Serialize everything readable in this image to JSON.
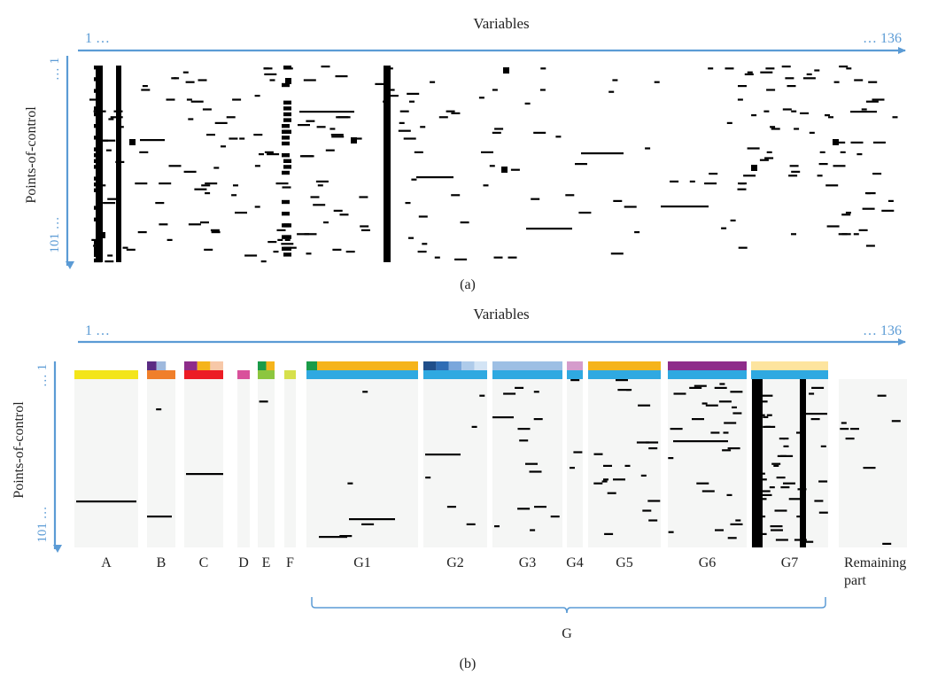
{
  "panel_a": {
    "top_label": "Variables",
    "x_start": "1 …",
    "x_end": "… 136",
    "y_label": "Points-of-control",
    "y_start": "… 1",
    "y_end": "101 …",
    "caption": "(a)"
  },
  "panel_b": {
    "top_label": "Variables",
    "x_start": "1 …",
    "x_end": "… 136",
    "y_label": "Points-of-control",
    "y_start": "… 1",
    "y_end": "101 …",
    "caption": "(b)",
    "group_brace_label": "G",
    "groups": [
      {
        "label": "A",
        "colors": [
          [
            "#f3e51a"
          ]
        ]
      },
      {
        "label": "B",
        "colors": [
          [
            "#5b2c83",
            "#9fb9dd",
            "#ffffff"
          ],
          [
            "#f07f2a"
          ]
        ]
      },
      {
        "label": "C",
        "colors": [
          [
            "#8e2c8a",
            "#f5b41b",
            "#f7c8a8"
          ],
          [
            "#ec1c24"
          ]
        ]
      },
      {
        "label": "D",
        "colors": [
          [
            "#d9519b"
          ]
        ]
      },
      {
        "label": "E",
        "colors": [
          [
            "#1a9b48",
            "#f5b41b"
          ],
          [
            "#8cc63f"
          ]
        ]
      },
      {
        "label": "F",
        "colors": [
          [
            "#d6e04c"
          ]
        ]
      },
      {
        "label": "G1",
        "colors": [
          [
            "#1a9b48",
            "#f5b41b"
          ],
          [
            "#2fa9e1"
          ]
        ]
      },
      {
        "label": "G2",
        "colors": [
          [
            "#1f4e8a",
            "#2f6db5",
            "#7aa7dc",
            "#aecbea",
            "#d3e4f5"
          ],
          [
            "#2fa9e1"
          ]
        ]
      },
      {
        "label": "G3",
        "colors": [
          [
            "#9dbfe4"
          ],
          [
            "#2fa9e1"
          ]
        ]
      },
      {
        "label": "G4",
        "colors": [
          [
            "#d59ccc"
          ],
          [
            "#2fa9e1"
          ]
        ]
      },
      {
        "label": "G5",
        "colors": [
          [
            "#f5b41b"
          ],
          [
            "#2fa9e1"
          ]
        ]
      },
      {
        "label": "G6",
        "colors": [
          [
            "#8e2c8a"
          ],
          [
            "#2fa9e1"
          ]
        ]
      },
      {
        "label": "G7",
        "colors": [
          [
            "#fde49e"
          ],
          [
            "#2fa9e1"
          ]
        ]
      },
      {
        "label": "Remaining part",
        "colors": []
      }
    ]
  },
  "colors": {
    "axis": "#5b9bd5",
    "cell": "#000000",
    "background_cell": "#f5f6f5",
    "brace": "#5b9bd5"
  }
}
